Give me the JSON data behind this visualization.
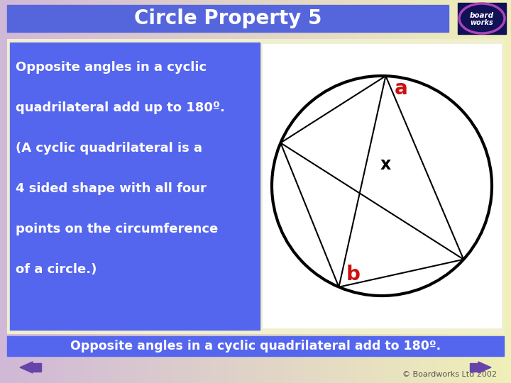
{
  "title": "Circle Property 5",
  "title_bg": "#5566dd",
  "title_color": "#ffffff",
  "bg_left_color": "#d8b8d8",
  "bg_right_color": "#f0f0c0",
  "text_box_bg": "#5566ee",
  "text_box_text": "#ffffff",
  "text_lines": [
    "Opposite angles in a cyclic",
    "quadrilateral add up to 180º.",
    "(A cyclic quadrilateral is a",
    "4 sided shape with all four",
    "points on the circumference",
    "of a circle.)"
  ],
  "label_a": "a",
  "label_x": "x",
  "label_b": "b",
  "label_color_a": "#cc1111",
  "label_color_x": "#000000",
  "label_color_b": "#cc1111",
  "bottom_bar_bg": "#5566ee",
  "bottom_bar_text": "#ffffff",
  "bottom_text": "Opposite angles in a cyclic quadrilateral add to 180º.",
  "footer_text": "© Boardworks Ltd 2002",
  "footer_color": "#555555",
  "arrow_color": "#6644aa",
  "logo_bg": "#111155",
  "logo_ring": "#aa44bb"
}
